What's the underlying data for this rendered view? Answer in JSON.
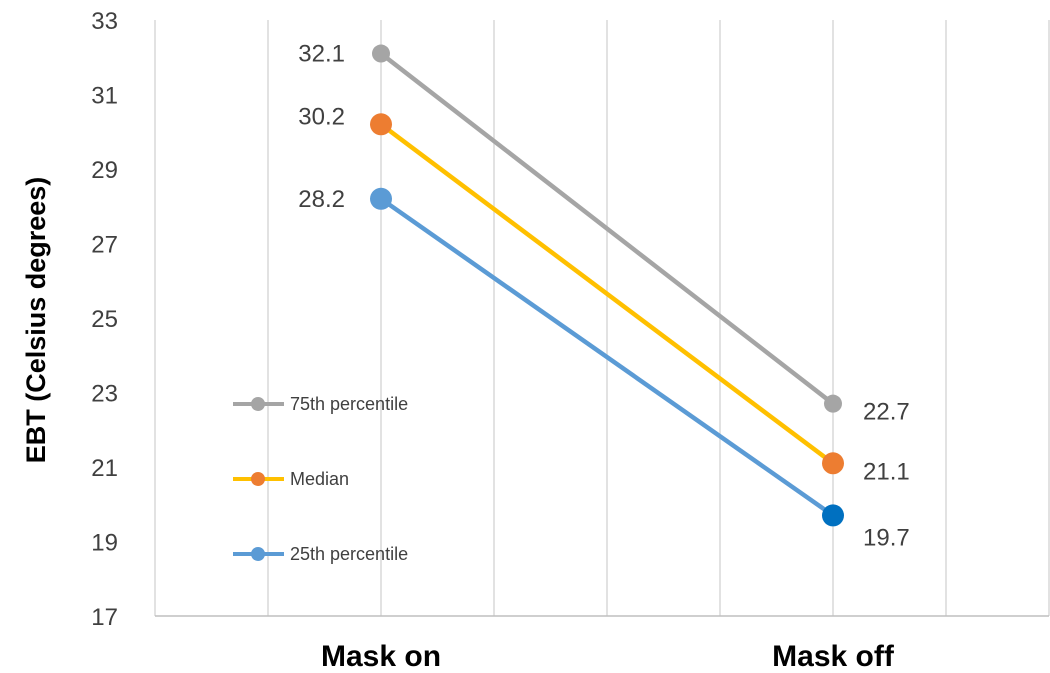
{
  "chart_data": {
    "type": "line",
    "categories": [
      "Mask on",
      "Mask off"
    ],
    "ylabel": "EBT (Celsius degrees)",
    "xlabel": "",
    "ylim": [
      17,
      33
    ],
    "yticks": [
      "17",
      "19",
      "21",
      "23",
      "25",
      "27",
      "29",
      "31",
      "33"
    ],
    "grid": true,
    "legend_position": "left-inside",
    "series": [
      {
        "name": "75th percentile",
        "values": [
          32.1,
          22.7
        ],
        "labels": [
          "32.1",
          "22.7"
        ],
        "line_color": "#A5A5A5",
        "marker_color": "#A5A5A5"
      },
      {
        "name": "Median",
        "values": [
          30.2,
          21.1
        ],
        "labels": [
          "30.2",
          "21.1"
        ],
        "line_color": "#FFC000",
        "marker_color": "#ED7D31"
      },
      {
        "name": "25th percentile",
        "values": [
          28.2,
          19.7
        ],
        "labels": [
          "28.2",
          "19.7"
        ],
        "line_color": "#5B9BD5",
        "marker_color": "#5B9BD5",
        "last_marker_color": "#0070C0"
      }
    ]
  }
}
